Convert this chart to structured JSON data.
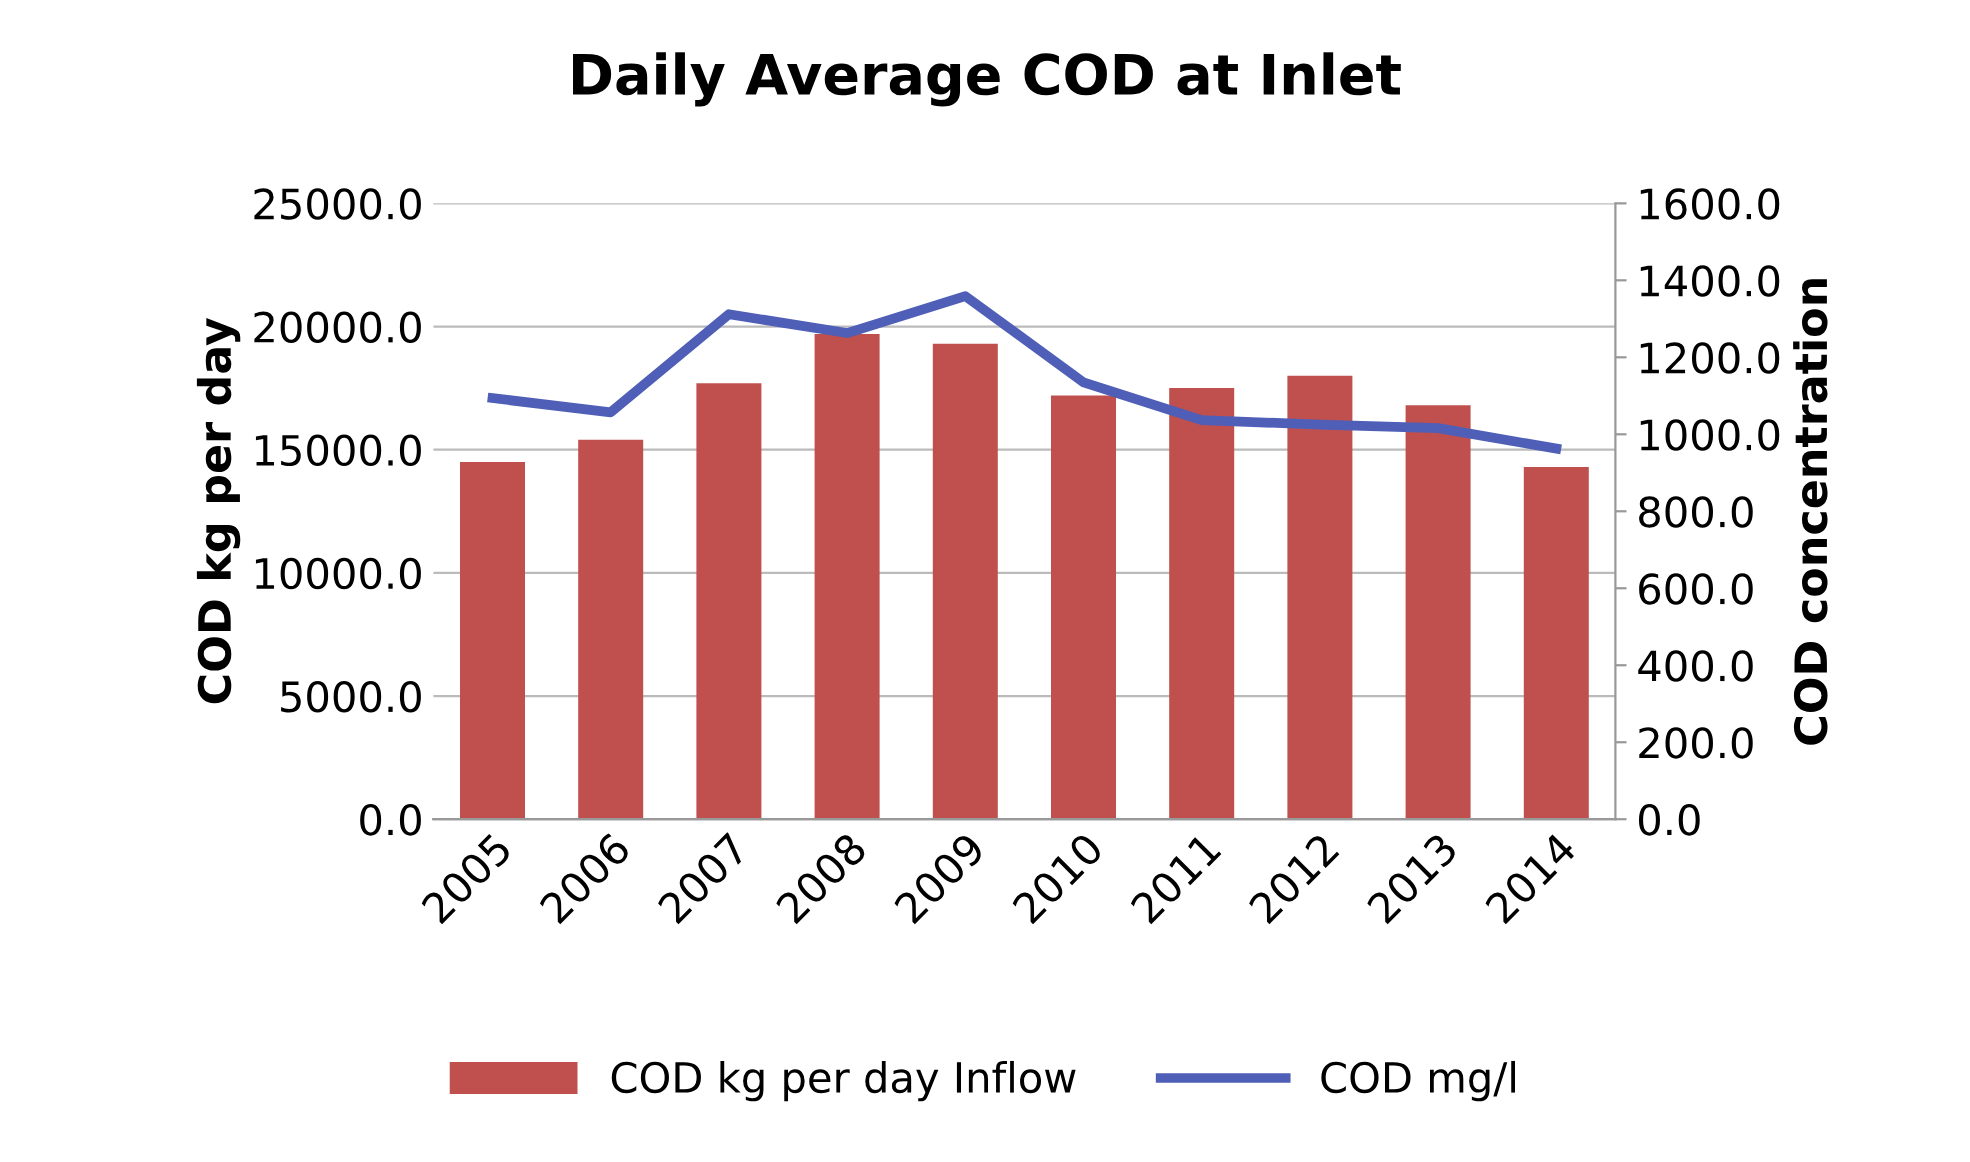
{
  "chart_data": {
    "type": "bar",
    "title": "Daily Average COD at Inlet",
    "ylabel": "COD kg per day",
    "y2label": "COD concentration",
    "categories": [
      "2005",
      "2006",
      "2007",
      "2008",
      "2009",
      "2010",
      "2011",
      "2012",
      "2013",
      "2014"
    ],
    "series": [
      {
        "name": "COD kg per day Inflow",
        "color": "#c0504d",
        "values": [
          14500,
          15400,
          17700,
          19700,
          19300,
          17200,
          17500,
          18000,
          16800,
          14300
        ]
      },
      {
        "name": "COD mg/l",
        "type": "line",
        "axis": "y2",
        "color": "#4f5fb8",
        "values": [
          1094,
          1057,
          1312,
          1263,
          1359,
          1135,
          1037,
          1025,
          1016,
          963
        ]
      }
    ],
    "ylim": [
      0,
      25000
    ],
    "yticks": [
      {
        "value": 0,
        "label": "0.0"
      },
      {
        "value": 5000,
        "label": "5000.0"
      },
      {
        "value": 10000,
        "label": "10000.0"
      },
      {
        "value": 15000,
        "label": "15000.0"
      },
      {
        "value": 20000,
        "label": "20000.0"
      },
      {
        "value": 25000,
        "label": "25000.0"
      }
    ],
    "y2lim": [
      0,
      1600
    ],
    "y2ticks": [
      {
        "value": 0,
        "label": "0.0"
      },
      {
        "value": 200,
        "label": "200.0"
      },
      {
        "value": 400,
        "label": "400.0"
      },
      {
        "value": 600,
        "label": "600.0"
      },
      {
        "value": 800,
        "label": "800.0"
      },
      {
        "value": 1000,
        "label": "1000.0"
      },
      {
        "value": 1200,
        "label": "1200.0"
      },
      {
        "value": 1400,
        "label": "1400.0"
      },
      {
        "value": 1600,
        "label": "1600.0"
      }
    ],
    "grid": "y",
    "legend": "bottom",
    "marker": "none",
    "line_style": "solid"
  }
}
